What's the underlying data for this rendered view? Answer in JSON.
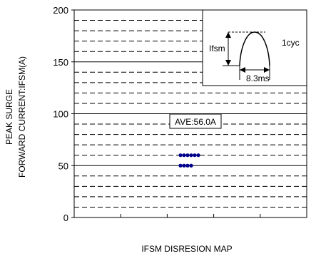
{
  "chart_data": {
    "type": "scatter",
    "title": "",
    "xlabel": "IFSM DISRESION MAP",
    "ylabel_lines": [
      "PEAK SURGE",
      "FORWARD CURRENT:IFSM(A)"
    ],
    "ylim": [
      0,
      200
    ],
    "y_major_ticks": [
      0,
      50,
      100,
      150,
      200
    ],
    "y_minor_step": 10,
    "grid": true,
    "x_tick_count": 4,
    "series": [
      {
        "color": "#00008b",
        "points": [
          {
            "x": 0,
            "y": 60
          },
          {
            "x": 1,
            "y": 60
          },
          {
            "x": 2,
            "y": 60
          },
          {
            "x": 3,
            "y": 60
          },
          {
            "x": 4,
            "y": 60
          },
          {
            "x": 5,
            "y": 60
          },
          {
            "x": 0,
            "y": 50
          },
          {
            "x": 1,
            "y": 50
          },
          {
            "x": 2,
            "y": 50
          },
          {
            "x": 3,
            "y": 50
          }
        ]
      }
    ],
    "annotation": {
      "text": "AVE:56.0A"
    },
    "inset": {
      "peak_label": "Ifsm",
      "cycle_label": "1cyc",
      "width_label": "8.3ms"
    }
  }
}
